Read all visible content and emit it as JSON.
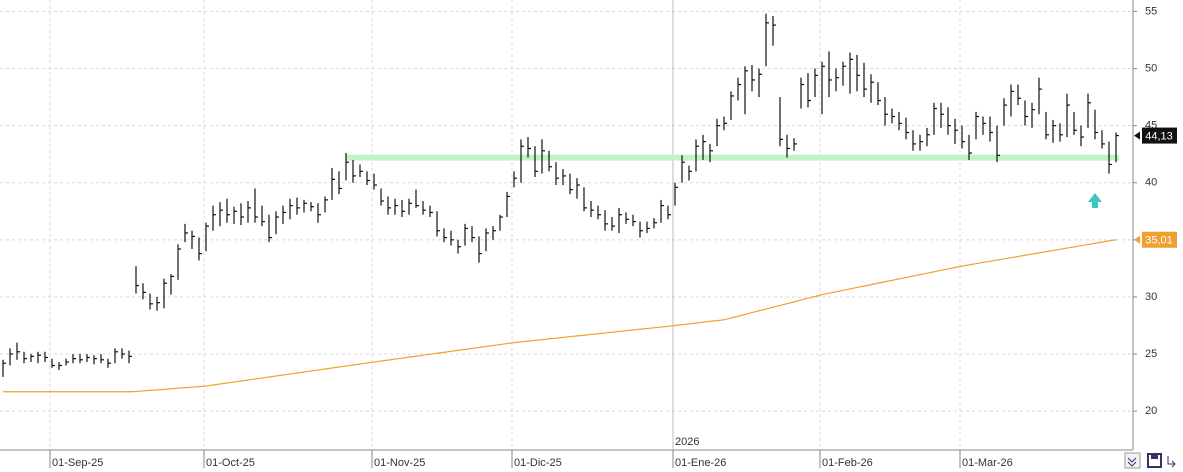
{
  "chart_data": {
    "type": "ohlc",
    "categories": [
      null,
      null,
      null,
      null,
      null,
      null,
      null,
      "01-Sep-25",
      null,
      null,
      null,
      null,
      null,
      null,
      null,
      null,
      null,
      null,
      null,
      null,
      null,
      null,
      null,
      null,
      null,
      null,
      null,
      null,
      null,
      "01-Oct-25",
      null,
      null,
      null,
      null,
      null,
      null,
      null,
      null,
      null,
      null,
      null,
      null,
      null,
      null,
      null,
      null,
      null,
      null,
      null,
      null,
      null,
      null,
      null,
      "01-Nov-25",
      null,
      null,
      null,
      null,
      null,
      null,
      null,
      null,
      null,
      null,
      null,
      null,
      null,
      null,
      null,
      null,
      null,
      null,
      null,
      "01-Dic-25",
      null,
      null,
      null,
      null,
      null,
      null,
      null,
      null,
      null,
      null,
      null,
      null,
      null,
      null,
      null,
      null,
      null,
      null,
      null,
      null,
      null,
      null,
      "01-Ene-26",
      null,
      null,
      null,
      null,
      null,
      null,
      null,
      null,
      null,
      null,
      null,
      null,
      null,
      null,
      null,
      null,
      null,
      null,
      null,
      null,
      "01-Feb-26",
      null,
      null,
      null,
      null,
      null,
      null,
      null,
      null,
      null,
      null,
      null,
      null,
      null,
      null,
      null,
      null,
      null,
      null,
      null,
      "01-Mar-26",
      null,
      null,
      null,
      null,
      null,
      null,
      null,
      null,
      null,
      null,
      null,
      null,
      null,
      null,
      null,
      null,
      null,
      null,
      null,
      null,
      null,
      null
    ],
    "bars": [
      {
        "low": 23.0,
        "high": 24.5,
        "close": 24.2
      },
      {
        "low": 24.0,
        "high": 25.5,
        "close": 25.0
      },
      {
        "low": 24.5,
        "high": 26.0,
        "close": 25.2
      },
      {
        "low": 24.2,
        "high": 25.2,
        "close": 24.6
      },
      {
        "low": 24.3,
        "high": 25.0,
        "close": 24.8
      },
      {
        "low": 24.2,
        "high": 25.2,
        "close": 24.9
      },
      {
        "low": 24.3,
        "high": 25.2,
        "close": 24.7
      },
      {
        "low": 23.8,
        "high": 24.6,
        "close": 24.0
      },
      {
        "low": 23.6,
        "high": 24.3,
        "close": 24.0
      },
      {
        "low": 24.0,
        "high": 24.6,
        "close": 24.3
      },
      {
        "low": 24.2,
        "high": 25.0,
        "close": 24.6
      },
      {
        "low": 24.2,
        "high": 25.0,
        "close": 24.5
      },
      {
        "low": 24.3,
        "high": 25.0,
        "close": 24.7
      },
      {
        "low": 24.1,
        "high": 24.9,
        "close": 24.6
      },
      {
        "low": 24.2,
        "high": 25.0,
        "close": 24.5
      },
      {
        "low": 23.8,
        "high": 24.6,
        "close": 24.2
      },
      {
        "low": 24.2,
        "high": 25.5,
        "close": 25.2
      },
      {
        "low": 24.6,
        "high": 25.5,
        "close": 25.0
      },
      {
        "low": 24.2,
        "high": 25.3,
        "close": 24.8
      },
      {
        "low": 30.3,
        "high": 32.7,
        "close": 31.0
      },
      {
        "low": 29.8,
        "high": 31.2,
        "close": 30.4
      },
      {
        "low": 28.9,
        "high": 30.3,
        "close": 29.4
      },
      {
        "low": 28.8,
        "high": 30.0,
        "close": 29.5
      },
      {
        "low": 29.0,
        "high": 31.6,
        "close": 31.2
      },
      {
        "low": 30.2,
        "high": 32.0,
        "close": 31.8
      },
      {
        "low": 31.5,
        "high": 34.6,
        "close": 34.2
      },
      {
        "low": 34.8,
        "high": 36.4,
        "close": 35.6
      },
      {
        "low": 34.2,
        "high": 35.8,
        "close": 35.3
      },
      {
        "low": 33.2,
        "high": 35.2,
        "close": 33.8
      },
      {
        "low": 34.0,
        "high": 36.5,
        "close": 36.2
      },
      {
        "low": 35.8,
        "high": 38.0,
        "close": 37.2
      },
      {
        "low": 36.2,
        "high": 38.3,
        "close": 37.6
      },
      {
        "low": 36.5,
        "high": 38.6,
        "close": 37.2
      },
      {
        "low": 36.4,
        "high": 37.9,
        "close": 37.5
      },
      {
        "low": 36.3,
        "high": 38.2,
        "close": 37.0
      },
      {
        "low": 36.5,
        "high": 38.4,
        "close": 37.8
      },
      {
        "low": 36.5,
        "high": 39.5,
        "close": 37.0
      },
      {
        "low": 36.2,
        "high": 38.0,
        "close": 36.6
      },
      {
        "low": 34.8,
        "high": 37.2,
        "close": 35.2
      },
      {
        "low": 35.5,
        "high": 37.5,
        "close": 37.0
      },
      {
        "low": 36.4,
        "high": 38.0,
        "close": 37.4
      },
      {
        "low": 36.8,
        "high": 38.6,
        "close": 38.0
      },
      {
        "low": 37.2,
        "high": 38.7,
        "close": 37.8
      },
      {
        "low": 37.4,
        "high": 38.5,
        "close": 38.2
      },
      {
        "low": 37.5,
        "high": 38.3,
        "close": 37.9
      },
      {
        "low": 36.5,
        "high": 38.2,
        "close": 37.2
      },
      {
        "low": 37.4,
        "high": 38.8,
        "close": 38.5
      },
      {
        "low": 38.5,
        "high": 41.3,
        "close": 40.3
      },
      {
        "low": 39.0,
        "high": 41.0,
        "close": 39.5
      },
      {
        "low": 40.2,
        "high": 42.6,
        "close": 41.8
      },
      {
        "low": 40.0,
        "high": 42.0,
        "close": 40.6
      },
      {
        "low": 40.5,
        "high": 41.6,
        "close": 41.0
      },
      {
        "low": 39.8,
        "high": 41.0,
        "close": 40.2
      },
      {
        "low": 39.4,
        "high": 40.8,
        "close": 39.8
      },
      {
        "low": 38.0,
        "high": 39.5,
        "close": 38.4
      },
      {
        "low": 37.2,
        "high": 38.8,
        "close": 37.8
      },
      {
        "low": 37.2,
        "high": 38.6,
        "close": 38.0
      },
      {
        "low": 37.0,
        "high": 38.5,
        "close": 37.5
      },
      {
        "low": 37.2,
        "high": 38.6,
        "close": 38.2
      },
      {
        "low": 37.8,
        "high": 39.4,
        "close": 38.0
      },
      {
        "low": 37.2,
        "high": 38.4,
        "close": 37.6
      },
      {
        "low": 37.0,
        "high": 38.0,
        "close": 37.4
      },
      {
        "low": 35.3,
        "high": 37.5,
        "close": 35.8
      },
      {
        "low": 34.8,
        "high": 36.0,
        "close": 35.2
      },
      {
        "low": 34.5,
        "high": 35.8,
        "close": 35.0
      },
      {
        "low": 33.8,
        "high": 35.0,
        "close": 34.4
      },
      {
        "low": 34.5,
        "high": 36.4,
        "close": 36.0
      },
      {
        "low": 34.8,
        "high": 36.2,
        "close": 35.2
      },
      {
        "low": 33.0,
        "high": 35.3,
        "close": 33.8
      },
      {
        "low": 34.0,
        "high": 36.0,
        "close": 35.6
      },
      {
        "low": 35.0,
        "high": 36.2,
        "close": 35.8
      },
      {
        "low": 35.8,
        "high": 37.2,
        "close": 37.0
      },
      {
        "low": 37.0,
        "high": 39.2,
        "close": 38.8
      },
      {
        "low": 39.6,
        "high": 41.0,
        "close": 40.4
      },
      {
        "low": 40.0,
        "high": 43.8,
        "close": 43.2
      },
      {
        "low": 42.2,
        "high": 44.0,
        "close": 43.0
      },
      {
        "low": 40.5,
        "high": 43.2,
        "close": 41.0
      },
      {
        "low": 40.8,
        "high": 43.8,
        "close": 42.8
      },
      {
        "low": 41.0,
        "high": 42.8,
        "close": 41.4
      },
      {
        "low": 39.8,
        "high": 41.8,
        "close": 40.4
      },
      {
        "low": 39.8,
        "high": 41.2,
        "close": 40.6
      },
      {
        "low": 39.0,
        "high": 40.8,
        "close": 39.4
      },
      {
        "low": 38.6,
        "high": 40.4,
        "close": 39.8
      },
      {
        "low": 37.5,
        "high": 39.6,
        "close": 37.8
      },
      {
        "low": 37.0,
        "high": 38.4,
        "close": 37.6
      },
      {
        "low": 36.8,
        "high": 38.0,
        "close": 37.2
      },
      {
        "low": 35.8,
        "high": 37.6,
        "close": 36.4
      },
      {
        "low": 35.8,
        "high": 37.0,
        "close": 36.2
      },
      {
        "low": 35.6,
        "high": 37.8,
        "close": 37.2
      },
      {
        "low": 36.4,
        "high": 37.4,
        "close": 36.8
      },
      {
        "low": 36.2,
        "high": 37.2,
        "close": 36.6
      },
      {
        "low": 35.2,
        "high": 36.6,
        "close": 35.8
      },
      {
        "low": 35.6,
        "high": 36.6,
        "close": 36.0
      },
      {
        "low": 36.0,
        "high": 36.9,
        "close": 36.5
      },
      {
        "low": 36.5,
        "high": 38.5,
        "close": 38.0
      },
      {
        "low": 36.8,
        "high": 38.0,
        "close": 37.2
      },
      {
        "low": 38.0,
        "high": 40.0,
        "close": 39.6
      },
      {
        "low": 40.0,
        "high": 42.4,
        "close": 41.8
      },
      {
        "low": 40.2,
        "high": 41.5,
        "close": 41.0
      },
      {
        "low": 41.0,
        "high": 43.8,
        "close": 43.2
      },
      {
        "low": 42.0,
        "high": 44.2,
        "close": 43.6
      },
      {
        "low": 41.8,
        "high": 43.4,
        "close": 42.8
      },
      {
        "low": 43.2,
        "high": 45.6,
        "close": 45.0
      },
      {
        "low": 44.6,
        "high": 45.8,
        "close": 45.2
      },
      {
        "low": 45.5,
        "high": 48.0,
        "close": 47.6
      },
      {
        "low": 47.2,
        "high": 49.2,
        "close": 48.6
      },
      {
        "low": 46.0,
        "high": 50.2,
        "close": 49.8
      },
      {
        "low": 48.0,
        "high": 50.3,
        "close": 49.0
      },
      {
        "low": 47.5,
        "high": 50.0,
        "close": 49.5
      },
      {
        "low": 50.2,
        "high": 54.8,
        "close": 54.0
      },
      {
        "low": 52.0,
        "high": 54.6,
        "close": 53.8
      },
      {
        "low": 43.2,
        "high": 47.5,
        "close": 43.8
      },
      {
        "low": 42.2,
        "high": 44.2,
        "close": 43.0
      },
      {
        "low": 42.8,
        "high": 43.9,
        "close": 43.4
      },
      {
        "low": 46.5,
        "high": 49.2,
        "close": 48.6
      },
      {
        "low": 46.6,
        "high": 49.6,
        "close": 47.2
      },
      {
        "low": 47.5,
        "high": 50.0,
        "close": 49.4
      },
      {
        "low": 46.0,
        "high": 50.6,
        "close": 50.2
      },
      {
        "low": 47.5,
        "high": 51.5,
        "close": 49.0
      },
      {
        "low": 48.0,
        "high": 50.0,
        "close": 49.2
      },
      {
        "low": 48.5,
        "high": 50.6,
        "close": 50.2
      },
      {
        "low": 47.8,
        "high": 51.4,
        "close": 50.8
      },
      {
        "low": 48.0,
        "high": 51.2,
        "close": 49.4
      },
      {
        "low": 47.5,
        "high": 50.5,
        "close": 48.2
      },
      {
        "low": 47.0,
        "high": 49.5,
        "close": 48.8
      },
      {
        "low": 46.8,
        "high": 48.8,
        "close": 47.2
      },
      {
        "low": 45.0,
        "high": 47.5,
        "close": 46.0
      },
      {
        "low": 45.2,
        "high": 46.5,
        "close": 45.8
      },
      {
        "low": 44.6,
        "high": 46.2,
        "close": 45.2
      },
      {
        "low": 43.8,
        "high": 45.7,
        "close": 44.4
      },
      {
        "low": 42.8,
        "high": 44.6,
        "close": 43.4
      },
      {
        "low": 42.8,
        "high": 44.2,
        "close": 43.6
      },
      {
        "low": 43.2,
        "high": 44.8,
        "close": 44.2
      },
      {
        "low": 44.2,
        "high": 47.0,
        "close": 46.5
      },
      {
        "low": 44.8,
        "high": 47.0,
        "close": 46.0
      },
      {
        "low": 44.2,
        "high": 46.6,
        "close": 45.0
      },
      {
        "low": 43.4,
        "high": 45.6,
        "close": 44.6
      },
      {
        "low": 43.0,
        "high": 45.0,
        "close": 43.6
      },
      {
        "low": 42.0,
        "high": 44.2,
        "close": 42.6
      },
      {
        "low": 43.8,
        "high": 46.2,
        "close": 45.8
      },
      {
        "low": 44.2,
        "high": 45.8,
        "close": 45.2
      },
      {
        "low": 43.6,
        "high": 45.8,
        "close": 44.4
      },
      {
        "low": 41.8,
        "high": 45.0,
        "close": 42.4
      },
      {
        "low": 45.0,
        "high": 47.4,
        "close": 46.8
      },
      {
        "low": 45.8,
        "high": 48.6,
        "close": 48.0
      },
      {
        "low": 46.8,
        "high": 48.6,
        "close": 47.4
      },
      {
        "low": 45.0,
        "high": 47.2,
        "close": 45.8
      },
      {
        "low": 44.8,
        "high": 47.0,
        "close": 46.4
      },
      {
        "low": 46.0,
        "high": 49.2,
        "close": 48.2
      },
      {
        "low": 43.8,
        "high": 46.2,
        "close": 44.2
      },
      {
        "low": 43.5,
        "high": 45.5,
        "close": 45.0
      },
      {
        "low": 43.6,
        "high": 45.2,
        "close": 44.2
      },
      {
        "low": 44.0,
        "high": 47.8,
        "close": 46.8
      },
      {
        "low": 44.2,
        "high": 46.2,
        "close": 44.6
      },
      {
        "low": 43.2,
        "high": 45.0,
        "close": 44.0
      },
      {
        "low": 44.8,
        "high": 47.8,
        "close": 47.0
      },
      {
        "low": 43.8,
        "high": 46.4,
        "close": 44.4
      },
      {
        "low": 43.0,
        "high": 44.6,
        "close": 43.4
      },
      {
        "low": 40.8,
        "high": 43.6,
        "close": 41.6
      },
      {
        "low": 41.8,
        "high": 44.4,
        "close": 44.13
      }
    ],
    "bar_color": "#111111",
    "ma": {
      "color": "#f0a030",
      "values": [
        21.7,
        21.7,
        21.7,
        21.7,
        21.7,
        21.7,
        21.7,
        21.7,
        21.7,
        21.7,
        21.7,
        21.7,
        21.7,
        21.7,
        21.7,
        21.7,
        21.7,
        21.7,
        21.7,
        21.72,
        21.77,
        21.82,
        21.86,
        21.91,
        21.96,
        22.01,
        22.06,
        22.1,
        22.15,
        22.2,
        22.29,
        22.38,
        22.46,
        22.55,
        22.64,
        22.73,
        22.81,
        22.9,
        22.99,
        23.08,
        23.16,
        23.25,
        23.34,
        23.43,
        23.51,
        23.6,
        23.69,
        23.78,
        23.86,
        23.95,
        24.04,
        24.13,
        24.21,
        24.3,
        24.39,
        24.47,
        24.56,
        24.64,
        24.73,
        24.81,
        24.9,
        24.98,
        25.07,
        25.15,
        25.24,
        25.32,
        25.41,
        25.49,
        25.58,
        25.66,
        25.75,
        25.83,
        25.92,
        26.0,
        26.07,
        26.13,
        26.2,
        26.26,
        26.33,
        26.39,
        26.46,
        26.52,
        26.59,
        26.65,
        26.72,
        26.78,
        26.85,
        26.91,
        26.98,
        27.04,
        27.11,
        27.17,
        27.24,
        27.3,
        27.37,
        27.43,
        27.5,
        27.57,
        27.64,
        27.71,
        27.79,
        27.86,
        27.93,
        28.0,
        28.16,
        28.31,
        28.47,
        28.63,
        28.79,
        28.94,
        29.1,
        29.26,
        29.41,
        29.57,
        29.73,
        29.89,
        30.04,
        30.2,
        30.33,
        30.45,
        30.58,
        30.7,
        30.83,
        30.95,
        31.08,
        31.2,
        31.33,
        31.45,
        31.58,
        31.7,
        31.83,
        31.95,
        32.08,
        32.2,
        32.33,
        32.45,
        32.58,
        32.7,
        32.81,
        32.91,
        33.02,
        33.12,
        33.23,
        33.33,
        33.44,
        33.54,
        33.65,
        33.75,
        33.86,
        33.96,
        34.07,
        34.17,
        34.28,
        34.38,
        34.49,
        34.59,
        34.7,
        34.8,
        34.91,
        35.01
      ]
    },
    "last_price": {
      "value": 44.13,
      "label": "44,13"
    },
    "ma_last": {
      "value": 35.01,
      "label": "35,01"
    },
    "support_level": 42.2,
    "support_color": "#bff5c4",
    "year_label": "2026",
    "ylim": [
      16.6,
      56
    ],
    "yticks": [
      20,
      25,
      30,
      35,
      40,
      45,
      50,
      55
    ],
    "grid": true
  }
}
